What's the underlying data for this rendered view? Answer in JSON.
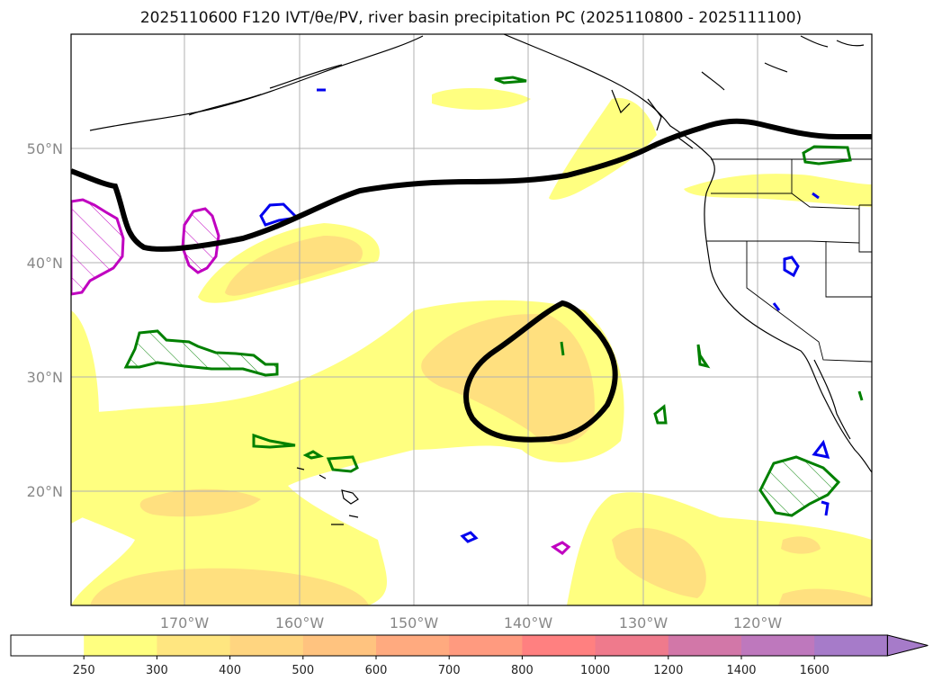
{
  "title": {
    "text": "2025110600 F120 IVT/θe/PV, river basin precipitation PC (2025110800 - 2025111100)"
  },
  "map": {
    "lat_labels": [
      {
        "text": "50°N",
        "lat": 50
      },
      {
        "text": "40°N",
        "lat": 40
      },
      {
        "text": "30°N",
        "lat": 30
      },
      {
        "text": "20°N",
        "lat": 20
      }
    ],
    "lon_labels": [
      {
        "text": "170°W",
        "lon": -170
      },
      {
        "text": "160°W",
        "lon": -160
      },
      {
        "text": "150°W",
        "lon": -150
      },
      {
        "text": "140°W",
        "lon": -140
      },
      {
        "text": "130°W",
        "lon": -130
      },
      {
        "text": "120°W",
        "lon": -120
      }
    ],
    "extent": {
      "lon_min": -180,
      "lon_max": -110,
      "lat_min": 10,
      "lat_max": 60
    }
  },
  "colorbar": {
    "labels": [
      "250",
      "300",
      "400",
      "500",
      "600",
      "700",
      "800",
      "1000",
      "1200",
      "1400",
      "1600"
    ],
    "colors": [
      "#ffffff",
      "#ffff80",
      "#ffe680",
      "#ffd580",
      "#ffc37f",
      "#ffaa7f",
      "#ff9a7f",
      "#ff8080",
      "#ef7a8c",
      "#d277a8",
      "#be78bd",
      "#a67bc9"
    ]
  },
  "legend_colors": {
    "ivt_fill_1": "#ffff80",
    "ivt_fill_2": "#ffe07f",
    "pv_contour": "#000000",
    "green_contour": "#008000",
    "magenta_contour": "#c000c0",
    "blue_contour": "#0000ee"
  }
}
